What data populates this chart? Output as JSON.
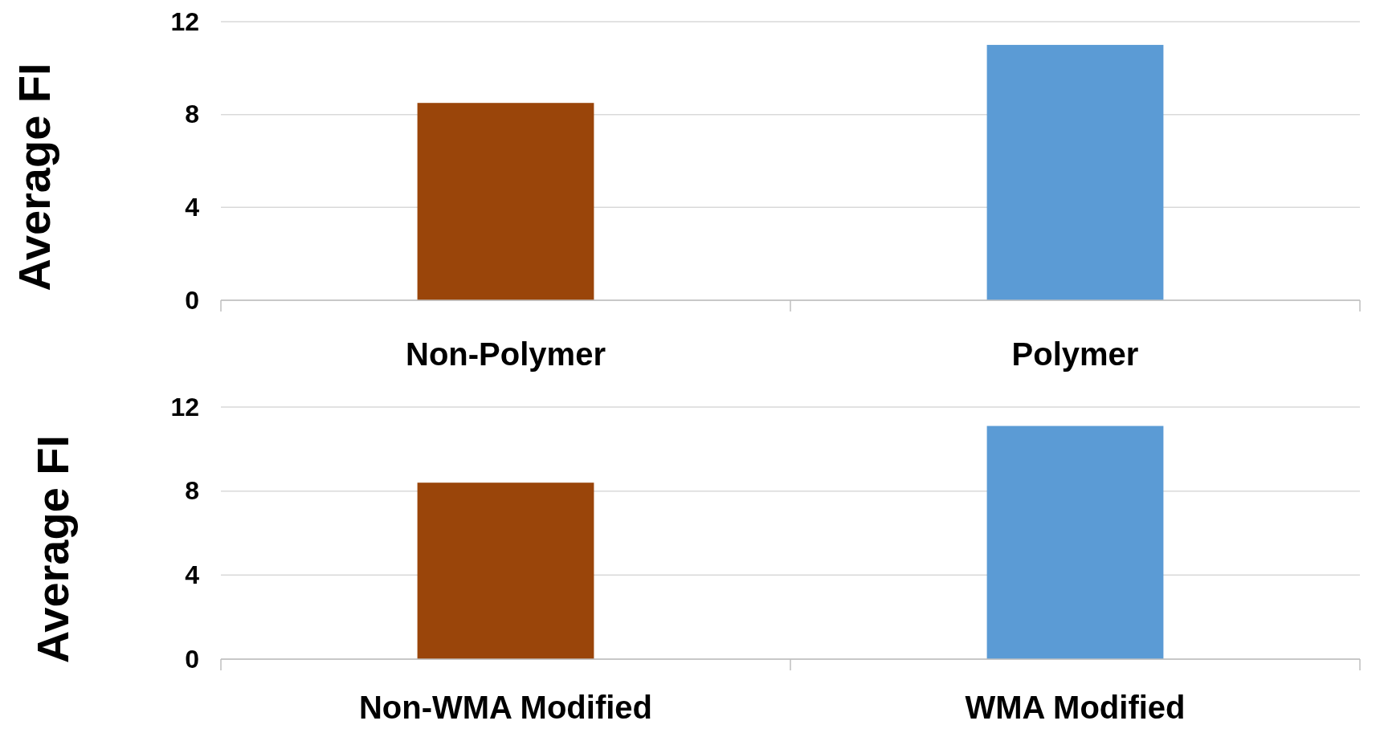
{
  "chart_data": [
    {
      "type": "bar",
      "ylabel": "Average FI",
      "categories": [
        "Non-Polymer",
        "Polymer"
      ],
      "values": [
        8.5,
        11.0
      ],
      "colors": [
        "#9a450a",
        "#5b9bd5"
      ],
      "ylim": [
        0,
        12
      ],
      "yticks": [
        0,
        4,
        8,
        12
      ],
      "grid": "y"
    },
    {
      "type": "bar",
      "ylabel": "Average FI",
      "categories": [
        "Non-WMA Modified",
        "WMA Modified"
      ],
      "values": [
        8.4,
        11.1
      ],
      "colors": [
        "#9a450a",
        "#5b9bd5"
      ],
      "ylim": [
        0,
        12
      ],
      "yticks": [
        0,
        4,
        8,
        12
      ],
      "grid": "y"
    }
  ]
}
